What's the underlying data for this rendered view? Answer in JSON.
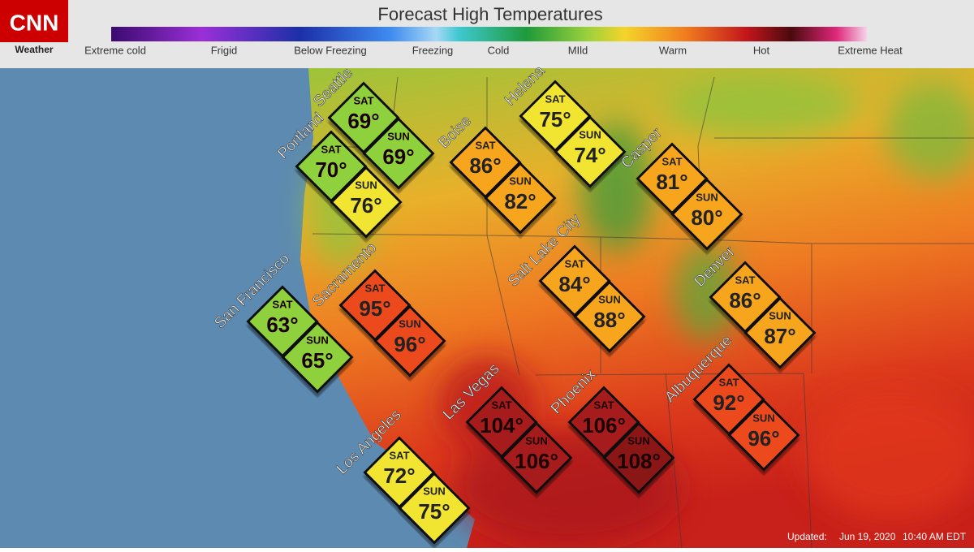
{
  "header": {
    "logo": "CNN",
    "logo_sub": "Weather",
    "title": "Forecast High Temperatures"
  },
  "legend": [
    "Extreme cold",
    "Frigid",
    "Below Freezing",
    "Freezing",
    "Cold",
    "MIld",
    "Warm",
    "Hot",
    "Extreme Heat"
  ],
  "day_labels": [
    "SAT",
    "SUN"
  ],
  "cities": [
    {
      "name": "Seattle",
      "sat": "69°",
      "sun": "69°",
      "sat_color": "#8fd13c",
      "sun_color": "#8fd13c"
    },
    {
      "name": "Portland",
      "sat": "70°",
      "sun": "76°",
      "sat_color": "#8fd13c",
      "sun_color": "#f2e531"
    },
    {
      "name": "Boise",
      "sat": "86°",
      "sun": "82°",
      "sat_color": "#f7a51f",
      "sun_color": "#f7a51f"
    },
    {
      "name": "Helena",
      "sat": "75°",
      "sun": "74°",
      "sat_color": "#f2e531",
      "sun_color": "#f2e531"
    },
    {
      "name": "Casper",
      "sat": "81°",
      "sun": "80°",
      "sat_color": "#f7a51f",
      "sun_color": "#f7a51f"
    },
    {
      "name": "Salt Lake City",
      "sat": "84°",
      "sun": "88°",
      "sat_color": "#f7a51f",
      "sun_color": "#f7a51f"
    },
    {
      "name": "Denver",
      "sat": "86°",
      "sun": "87°",
      "sat_color": "#f7a51f",
      "sun_color": "#f7a51f"
    },
    {
      "name": "San Francisco",
      "sat": "63°",
      "sun": "65°",
      "sat_color": "#8fd13c",
      "sun_color": "#8fd13c"
    },
    {
      "name": "Sacramento",
      "sat": "95°",
      "sun": "96°",
      "sat_color": "#ec4a1e",
      "sun_color": "#ec4a1e"
    },
    {
      "name": "Las Vegas",
      "sat": "104°",
      "sun": "106°",
      "sat_color": "#a61c1c",
      "sun_color": "#a61c1c"
    },
    {
      "name": "Phoenix",
      "sat": "106°",
      "sun": "108°",
      "sat_color": "#a61c1c",
      "sun_color": "#8b1517"
    },
    {
      "name": "Albuquerque",
      "sat": "92°",
      "sun": "96°",
      "sat_color": "#ec4a1e",
      "sun_color": "#ec4a1e"
    },
    {
      "name": "Los Angeles",
      "sat": "72°",
      "sun": "75°",
      "sat_color": "#f2e531",
      "sun_color": "#f2e531"
    }
  ],
  "updated": {
    "label": "Updated:",
    "date": "Jun 19, 2020",
    "time": "10:40 AM EDT"
  }
}
